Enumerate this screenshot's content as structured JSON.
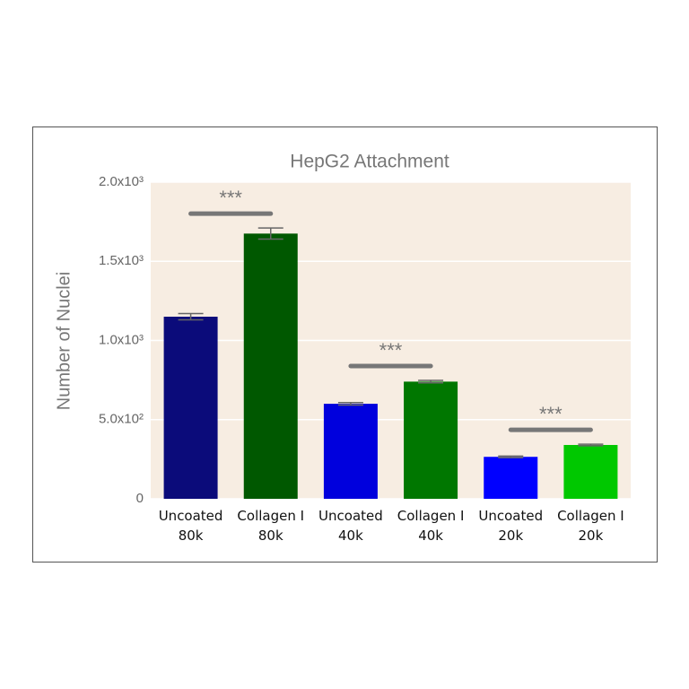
{
  "chart_data": {
    "type": "bar",
    "title": "HepG2 Attachment",
    "y_label": "Number of Nuclei",
    "categories": [
      "Uncoated\n80k",
      "Collagen I\n80k",
      "Uncoated\n40k",
      "Collagen I\n40k",
      "Uncoated\n20k",
      "Collagen I\n20k"
    ],
    "values": [
      1150,
      1675,
      600,
      740,
      265,
      340
    ],
    "errors": [
      20,
      35,
      8,
      8,
      5,
      5
    ],
    "colors": [
      "#0b0b7a",
      "#005800",
      "#0000dd",
      "#007700",
      "#0000ff",
      "#00c800"
    ],
    "ylim": [
      0,
      2000
    ],
    "yticks": [
      0,
      {
        "value": 500,
        "label": "5.0x10²"
      },
      {
        "value": 1000,
        "label": "1.0x10³"
      },
      {
        "value": 1500,
        "label": "1.5x10³"
      },
      {
        "value": 2000,
        "label": "2.0x10³"
      }
    ],
    "grid": true,
    "annotations": [
      "***",
      "***",
      "***"
    ]
  }
}
